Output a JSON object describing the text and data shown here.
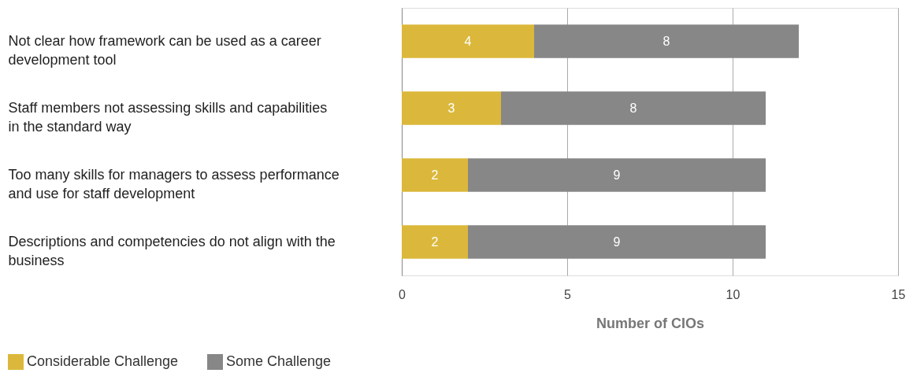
{
  "chart_data": {
    "type": "bar",
    "orientation": "horizontal",
    "stacked": true,
    "xlabel": "Number of CIOs",
    "categories": [
      "Not clear how framework can be used as a career development tool",
      "Staff members not assessing skills and capabilities in the standard way",
      "Too many skills for managers to assess performance and use for staff development",
      "Descriptions and competencies do not align with the business"
    ],
    "series": [
      {
        "name": "Considerable Challenge",
        "color": "#dbb83b",
        "values": [
          4,
          3,
          2,
          2
        ]
      },
      {
        "name": "Some Challenge",
        "color": "#878787",
        "values": [
          8,
          8,
          9,
          9
        ]
      }
    ],
    "xlim": [
      0,
      15
    ],
    "xticks": [
      0,
      5,
      10,
      15
    ],
    "grid": "x",
    "data_labels": true,
    "legend": "bottom left"
  }
}
